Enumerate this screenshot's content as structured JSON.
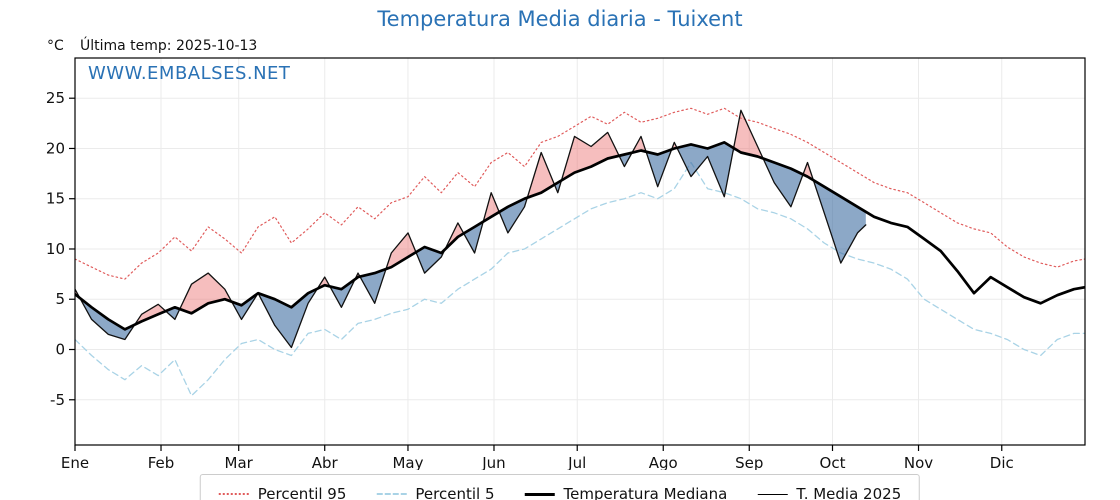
{
  "title": "Temperatura Media diaria - Tuixent",
  "header": {
    "unit": "°C",
    "last_temp": "Última temp: 2025-10-13"
  },
  "watermark": "WWW.EMBALSES.NET",
  "colors": {
    "title": "#2a72b5",
    "watermark": "#2a72b5",
    "p95_line": "#e05c5c",
    "p5_line": "#a9d3e6",
    "median_line": "#000000",
    "t2025_line": "#111111",
    "fill_above": "rgba(235,110,110,0.45)",
    "fill_below": "rgba(70,115,165,0.62)",
    "grid": "#ebebeb",
    "axis": "#000000"
  },
  "chart_data": {
    "type": "line",
    "title": "Temperatura Media diaria - Tuixent",
    "xlabel": "",
    "ylabel": "°C",
    "x_unit": "day_of_year",
    "xlim": [
      1,
      365
    ],
    "ylim": [
      -9.5,
      29
    ],
    "yticks": [
      -5,
      0,
      5,
      10,
      15,
      20,
      25
    ],
    "grid": true,
    "legend_position": "bottom",
    "months": [
      {
        "label": "Ene",
        "day": 1
      },
      {
        "label": "Feb",
        "day": 32
      },
      {
        "label": "Mar",
        "day": 60
      },
      {
        "label": "Abr",
        "day": 91
      },
      {
        "label": "May",
        "day": 121
      },
      {
        "label": "Jun",
        "day": 152
      },
      {
        "label": "Jul",
        "day": 182
      },
      {
        "label": "Ago",
        "day": 213
      },
      {
        "label": "Sep",
        "day": 244
      },
      {
        "label": "Oct",
        "day": 274
      },
      {
        "label": "Nov",
        "day": 305
      },
      {
        "label": "Dic",
        "day": 335
      }
    ],
    "fill_between": {
      "upper_series": "T. Media 2025",
      "reference_series": "Temperatura Mediana",
      "above_color": "rgba(235,110,110,0.45)",
      "below_color": "rgba(70,115,165,0.62)"
    },
    "series": [
      {
        "name": "Percentil 95",
        "style": "dotted",
        "color": "#e05c5c",
        "width": 1.2,
        "x": [
          1,
          7,
          13,
          19,
          25,
          31,
          37,
          43,
          49,
          55,
          61,
          67,
          73,
          79,
          85,
          91,
          97,
          103,
          109,
          115,
          121,
          127,
          133,
          139,
          145,
          151,
          157,
          163,
          169,
          175,
          181,
          187,
          193,
          199,
          205,
          211,
          217,
          223,
          229,
          235,
          241,
          247,
          253,
          259,
          265,
          271,
          277,
          283,
          289,
          295,
          301,
          307,
          313,
          319,
          325,
          331,
          337,
          343,
          349,
          355,
          361,
          365
        ],
        "values": [
          9.0,
          8.2,
          7.4,
          7.0,
          8.6,
          9.6,
          11.2,
          9.8,
          12.2,
          11.0,
          9.6,
          12.2,
          13.2,
          10.6,
          12.0,
          13.6,
          12.4,
          14.2,
          13.0,
          14.6,
          15.2,
          17.2,
          15.6,
          17.6,
          16.2,
          18.6,
          19.6,
          18.2,
          20.6,
          21.2,
          22.2,
          23.2,
          22.4,
          23.6,
          22.6,
          23.0,
          23.6,
          24.0,
          23.4,
          24.0,
          23.0,
          22.6,
          22.0,
          21.4,
          20.6,
          19.6,
          18.6,
          17.6,
          16.6,
          16.0,
          15.6,
          14.6,
          13.6,
          12.6,
          12.0,
          11.6,
          10.2,
          9.2,
          8.6,
          8.2,
          8.8,
          9.0
        ]
      },
      {
        "name": "Percentil 5",
        "style": "dashed",
        "color": "#a9d3e6",
        "width": 1.3,
        "x": [
          1,
          7,
          13,
          19,
          25,
          31,
          37,
          43,
          49,
          55,
          61,
          67,
          73,
          79,
          85,
          91,
          97,
          103,
          109,
          115,
          121,
          127,
          133,
          139,
          145,
          151,
          157,
          163,
          169,
          175,
          181,
          187,
          193,
          199,
          205,
          211,
          217,
          223,
          229,
          235,
          241,
          247,
          253,
          259,
          265,
          271,
          277,
          283,
          289,
          295,
          301,
          307,
          313,
          319,
          325,
          331,
          337,
          343,
          349,
          355,
          361,
          365
        ],
        "values": [
          1.0,
          -0.6,
          -2.0,
          -3.0,
          -1.6,
          -2.6,
          -1.0,
          -4.6,
          -3.0,
          -1.0,
          0.6,
          1.0,
          0.0,
          -0.6,
          1.6,
          2.0,
          1.0,
          2.6,
          3.0,
          3.6,
          4.0,
          5.0,
          4.6,
          6.0,
          7.0,
          8.0,
          9.6,
          10.0,
          11.0,
          12.0,
          13.0,
          14.0,
          14.6,
          15.0,
          15.6,
          15.0,
          16.0,
          18.6,
          16.0,
          15.6,
          15.0,
          14.0,
          13.6,
          13.0,
          12.0,
          10.6,
          9.6,
          9.0,
          8.6,
          8.0,
          7.0,
          5.0,
          4.0,
          3.0,
          2.0,
          1.6,
          1.0,
          0.0,
          -0.6,
          1.0,
          1.6,
          1.6
        ]
      },
      {
        "name": "Temperatura Mediana",
        "style": "solid-thick",
        "color": "#000000",
        "width": 2.7,
        "x": [
          1,
          7,
          13,
          19,
          25,
          31,
          37,
          43,
          49,
          55,
          61,
          67,
          73,
          79,
          85,
          91,
          97,
          103,
          109,
          115,
          121,
          127,
          133,
          139,
          145,
          151,
          157,
          163,
          169,
          175,
          181,
          187,
          193,
          199,
          205,
          211,
          217,
          223,
          229,
          235,
          241,
          247,
          253,
          259,
          265,
          271,
          277,
          283,
          289,
          295,
          301,
          307,
          313,
          319,
          325,
          331,
          337,
          343,
          349,
          355,
          361,
          365
        ],
        "values": [
          5.5,
          4.2,
          3.0,
          2.0,
          2.8,
          3.5,
          4.2,
          3.6,
          4.6,
          5.0,
          4.4,
          5.6,
          5.0,
          4.2,
          5.6,
          6.4,
          6.0,
          7.2,
          7.6,
          8.2,
          9.2,
          10.2,
          9.6,
          11.2,
          12.2,
          13.2,
          14.2,
          15.0,
          15.6,
          16.6,
          17.6,
          18.2,
          19.0,
          19.4,
          19.8,
          19.4,
          20.0,
          20.4,
          20.0,
          20.6,
          19.6,
          19.2,
          18.6,
          18.0,
          17.2,
          16.2,
          15.2,
          14.2,
          13.2,
          12.6,
          12.2,
          11.0,
          9.8,
          7.8,
          5.6,
          7.2,
          6.2,
          5.2,
          4.6,
          5.4,
          6.0,
          6.2
        ]
      },
      {
        "name": "T. Media 2025",
        "style": "solid-thin",
        "color": "#111111",
        "width": 1.3,
        "x": [
          1,
          7,
          13,
          19,
          25,
          31,
          37,
          43,
          49,
          55,
          61,
          67,
          73,
          79,
          85,
          91,
          97,
          103,
          109,
          115,
          121,
          127,
          133,
          139,
          145,
          151,
          157,
          163,
          169,
          175,
          181,
          187,
          193,
          199,
          205,
          211,
          217,
          223,
          229,
          235,
          241,
          247,
          253,
          259,
          265,
          271,
          277,
          283,
          286
        ],
        "values": [
          6.0,
          3.0,
          1.5,
          1.0,
          3.5,
          4.5,
          3.0,
          6.5,
          7.6,
          6.0,
          3.0,
          5.6,
          2.4,
          0.2,
          4.6,
          7.2,
          4.2,
          7.6,
          4.6,
          9.6,
          11.6,
          7.6,
          9.2,
          12.6,
          9.6,
          15.6,
          11.6,
          14.2,
          19.6,
          15.6,
          21.2,
          20.2,
          21.6,
          18.2,
          21.2,
          16.2,
          20.6,
          17.2,
          19.2,
          15.2,
          23.8,
          20.2,
          16.6,
          14.2,
          18.6,
          13.6,
          8.6,
          11.6,
          12.4
        ]
      }
    ]
  },
  "legend": {
    "items": [
      "Percentil 95",
      "Percentil 5",
      "Temperatura Mediana",
      "T. Media 2025"
    ]
  }
}
